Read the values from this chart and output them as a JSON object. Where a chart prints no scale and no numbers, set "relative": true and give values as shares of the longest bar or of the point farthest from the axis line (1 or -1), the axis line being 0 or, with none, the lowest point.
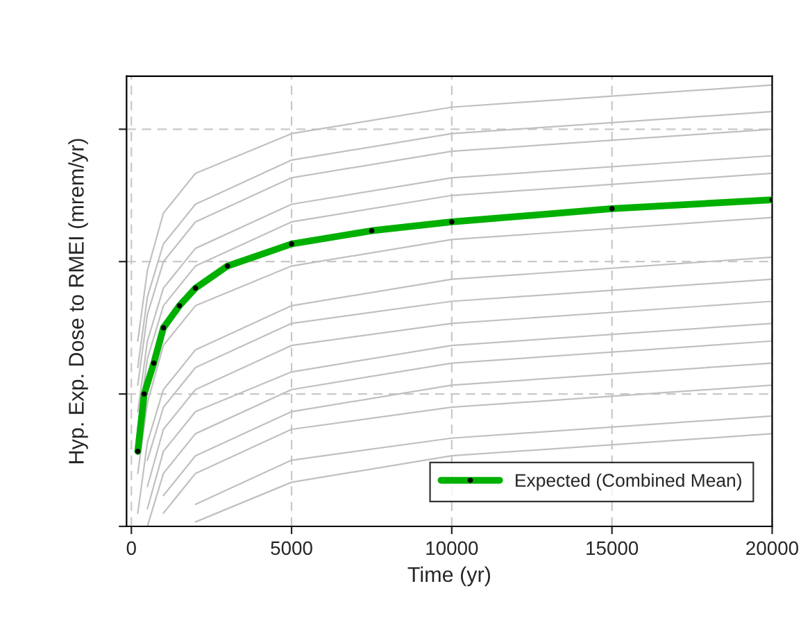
{
  "chart_data": {
    "type": "line",
    "relative": true,
    "xlabel": "Time (yr)",
    "ylabel": "Hyp. Exp. Dose to RMEI (mrem/yr)",
    "xlim": [
      -150,
      20000
    ],
    "xticks": [
      0,
      5000,
      10000,
      15000,
      20000
    ],
    "grid": true,
    "legend": "bottom right",
    "tick_labels": "x",
    "line_style": "solid",
    "series": [
      {
        "color": "#c0c0c0",
        "x": [
          200,
          500,
          1000,
          2000,
          5000,
          10000,
          20000
        ],
        "values": [
          0.42,
          0.58,
          0.71,
          0.8,
          0.89,
          0.95,
          1.0
        ]
      },
      {
        "color": "#c0c0c0",
        "x": [
          200,
          500,
          1000,
          2000,
          5000,
          10000,
          20000
        ],
        "values": [
          0.36,
          0.52,
          0.64,
          0.73,
          0.83,
          0.89,
          0.94
        ]
      },
      {
        "color": "#c0c0c0",
        "x": [
          200,
          500,
          1000,
          2000,
          5000,
          10000,
          20000
        ],
        "values": [
          0.32,
          0.48,
          0.6,
          0.69,
          0.79,
          0.85,
          0.9
        ]
      },
      {
        "color": "#c0c0c0",
        "x": [
          200,
          500,
          1000,
          2000,
          5000,
          10000,
          20000
        ],
        "values": [
          0.26,
          0.42,
          0.54,
          0.63,
          0.73,
          0.79,
          0.84
        ]
      },
      {
        "color": "#c0c0c0",
        "x": [
          200,
          500,
          1000,
          2000,
          5000,
          10000,
          20000
        ],
        "values": [
          0.22,
          0.38,
          0.5,
          0.59,
          0.69,
          0.75,
          0.8
        ]
      },
      {
        "color": "#c0c0c0",
        "x": [
          200,
          500,
          1000,
          2000,
          5000,
          10000,
          20000
        ],
        "values": [
          0.12,
          0.28,
          0.41,
          0.5,
          0.59,
          0.65,
          0.7
        ]
      },
      {
        "color": "#c0c0c0",
        "x": [
          200,
          500,
          1000,
          2000,
          5000,
          10000,
          20000
        ],
        "values": [
          0.03,
          0.19,
          0.31,
          0.4,
          0.5,
          0.56,
          0.61
        ]
      },
      {
        "color": "#c0c0c0",
        "x": [
          500,
          1000,
          2000,
          5000,
          10000,
          20000
        ],
        "values": [
          0.15,
          0.27,
          0.36,
          0.46,
          0.51,
          0.56
        ]
      },
      {
        "color": "#c0c0c0",
        "x": [
          500,
          1000,
          2000,
          5000,
          10000,
          20000
        ],
        "values": [
          0.09,
          0.22,
          0.31,
          0.41,
          0.46,
          0.51
        ]
      },
      {
        "color": "#c0c0c0",
        "x": [
          500,
          1000,
          2000,
          5000,
          10000,
          20000
        ],
        "values": [
          0.04,
          0.17,
          0.26,
          0.35,
          0.41,
          0.46
        ]
      },
      {
        "color": "#c0c0c0",
        "x": [
          500,
          1000,
          2000,
          5000,
          10000,
          20000
        ],
        "values": [
          0.0,
          0.12,
          0.21,
          0.31,
          0.37,
          0.42
        ]
      },
      {
        "color": "#c0c0c0",
        "x": [
          1000,
          2000,
          5000,
          10000,
          20000
        ],
        "values": [
          0.07,
          0.16,
          0.26,
          0.32,
          0.37
        ]
      },
      {
        "color": "#c0c0c0",
        "x": [
          1000,
          2000,
          5000,
          10000,
          20000
        ],
        "values": [
          0.03,
          0.12,
          0.22,
          0.27,
          0.32
        ]
      },
      {
        "color": "#c0c0c0",
        "x": [
          2000,
          5000,
          10000,
          20000
        ],
        "values": [
          0.05,
          0.15,
          0.2,
          0.25
        ]
      },
      {
        "color": "#c0c0c0",
        "x": [
          2000,
          5000,
          10000,
          20000
        ],
        "values": [
          0.01,
          0.1,
          0.16,
          0.21
        ]
      },
      {
        "name": "Expected (Combined Mean)",
        "color": "#00b000",
        "marker": "circle",
        "x": [
          200,
          400,
          700,
          1000,
          1500,
          2000,
          3000,
          5000,
          7500,
          10000,
          15000,
          20000
        ],
        "values": [
          0.17,
          0.3,
          0.37,
          0.45,
          0.5,
          0.54,
          0.59,
          0.64,
          0.67,
          0.69,
          0.72,
          0.74
        ]
      }
    ]
  }
}
